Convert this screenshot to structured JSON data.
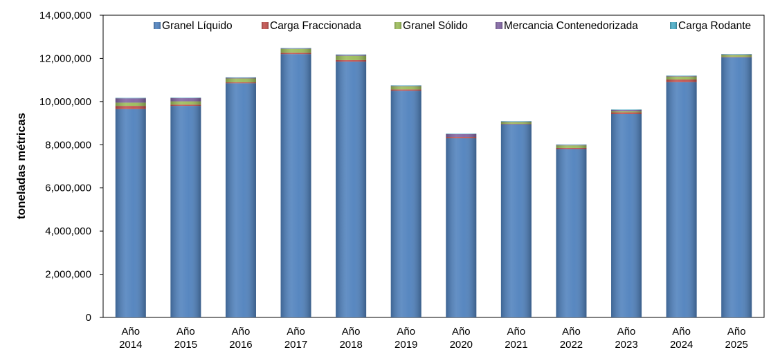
{
  "chart_data": {
    "type": "bar",
    "stacked": true,
    "title": "",
    "xlabel": "",
    "ylabel": "toneladas métricas",
    "ylim": [
      0,
      14000000
    ],
    "yticks": [
      "0",
      "2,000,000",
      "4,000,000",
      "6,000,000",
      "8,000,000",
      "10,000,000",
      "12,000,000",
      "14,000,000"
    ],
    "categories": [
      [
        "Año",
        "2014"
      ],
      [
        "Año",
        "2015"
      ],
      [
        "Año",
        "2016"
      ],
      [
        "Año",
        "2017"
      ],
      [
        "Año",
        "2018"
      ],
      [
        "Año",
        "2019"
      ],
      [
        "Año",
        "2020"
      ],
      [
        "Año",
        "2021"
      ],
      [
        "Año",
        "2022"
      ],
      [
        "Año",
        "2023"
      ],
      [
        "Año",
        "2024"
      ],
      [
        "Año",
        "2025"
      ]
    ],
    "grid": false,
    "legend": "top",
    "series": [
      {
        "name": "Granel Líquido",
        "color": "#4f81bd",
        "values": [
          9650000,
          9800000,
          10850000,
          12200000,
          11850000,
          10500000,
          8300000,
          8950000,
          7800000,
          9420000,
          10900000,
          12050000
        ]
      },
      {
        "name": "Carga Fraccionada",
        "color": "#c0504d",
        "values": [
          150000,
          60000,
          40000,
          60000,
          70000,
          60000,
          60000,
          20000,
          50000,
          80000,
          120000,
          20000
        ]
      },
      {
        "name": "Granel Sólido",
        "color": "#9bbb59",
        "values": [
          150000,
          150000,
          180000,
          180000,
          200000,
          150000,
          0,
          80000,
          120000,
          50000,
          140000,
          90000
        ]
      },
      {
        "name": "Mercancia Contenedorizada",
        "color": "#8064a2",
        "values": [
          200000,
          150000,
          30000,
          20000,
          40000,
          20000,
          130000,
          20000,
          20000,
          60000,
          20000,
          20000
        ]
      },
      {
        "name": "Carga Rodante",
        "color": "#4bacc6",
        "values": [
          20000,
          20000,
          20000,
          20000,
          20000,
          20000,
          20000,
          20000,
          20000,
          20000,
          20000,
          20000
        ]
      }
    ]
  }
}
